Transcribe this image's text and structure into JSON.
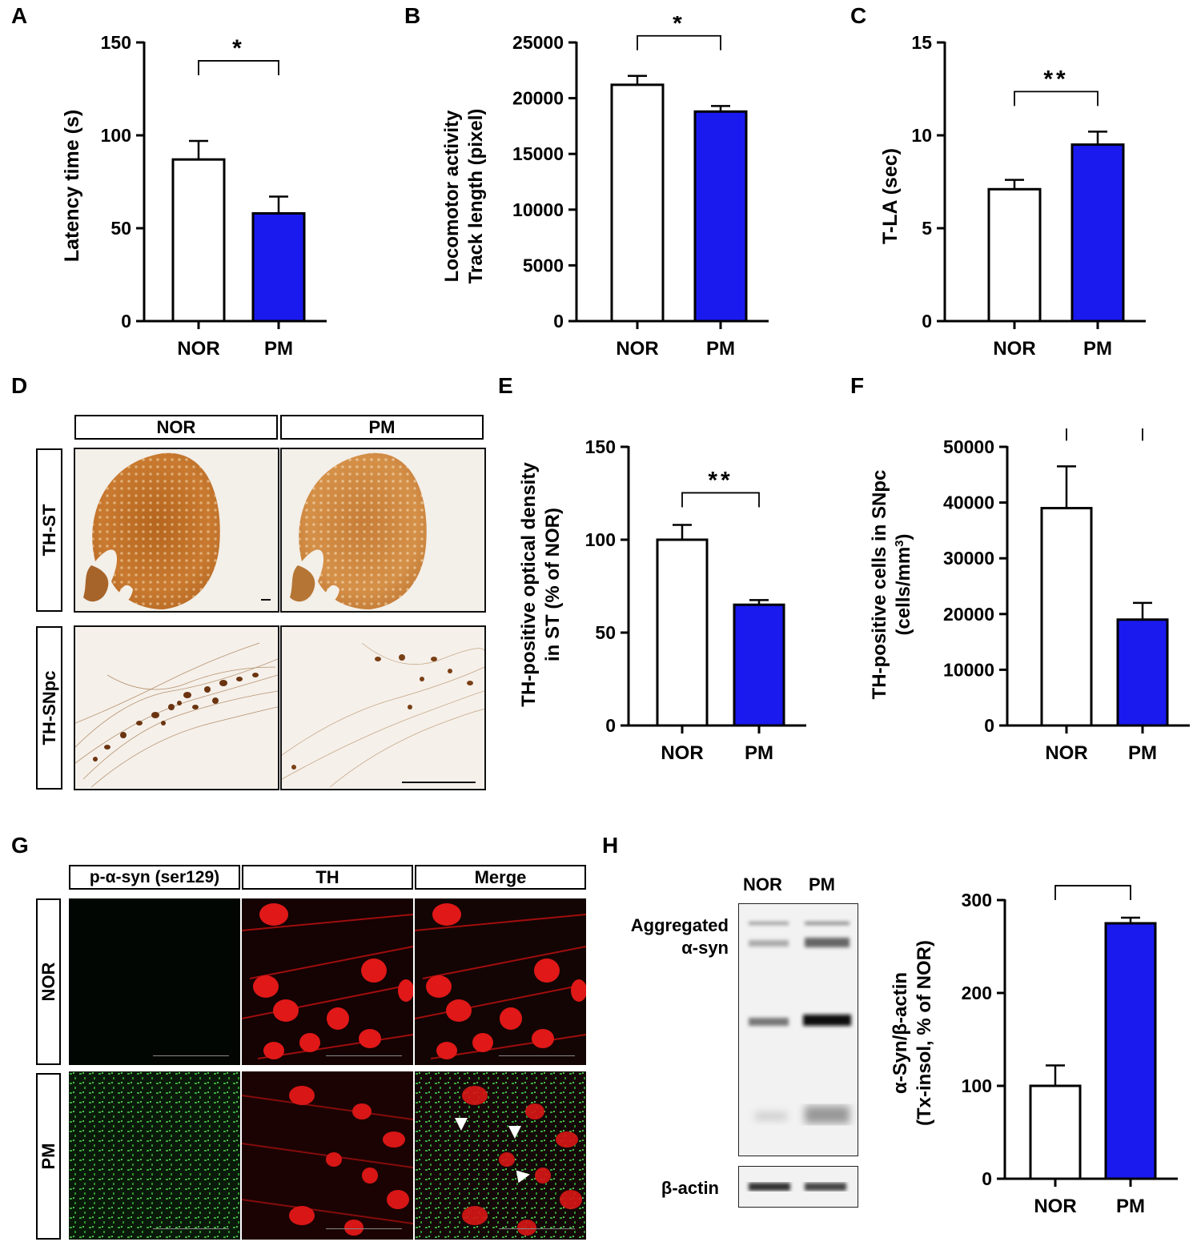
{
  "panels": {
    "a": {
      "letter": "A"
    },
    "b": {
      "letter": "B"
    },
    "c": {
      "letter": "C"
    },
    "d": {
      "letter": "D",
      "col_headers": [
        "NOR",
        "PM"
      ],
      "row_headers": [
        "TH-ST",
        "TH-SNpc"
      ]
    },
    "e": {
      "letter": "E"
    },
    "f": {
      "letter": "F"
    },
    "g": {
      "letter": "G",
      "col_headers": [
        "p-α-syn (ser129)",
        "TH",
        "Merge"
      ],
      "row_headers": [
        "NOR",
        "PM"
      ]
    },
    "h": {
      "letter": "H",
      "lane_labels": [
        "NOR",
        "PM"
      ],
      "band_label_1": "Aggregated",
      "band_label_2": "α-syn",
      "loading_label": "β-actin"
    }
  },
  "colors": {
    "nor_fill": "#ffffff",
    "pm_fill": "#1a1aee",
    "stroke": "#000000"
  },
  "chart_data": [
    {
      "id": "A",
      "type": "bar",
      "categories": [
        "NOR",
        "PM"
      ],
      "values": [
        87,
        58
      ],
      "errors": [
        10,
        9
      ],
      "ylabel": "Latency time (s)",
      "ylim": [
        0,
        150
      ],
      "yticks": [
        "0",
        "50",
        "100",
        "150"
      ],
      "significance": "*"
    },
    {
      "id": "B",
      "type": "bar",
      "categories": [
        "NOR",
        "PM"
      ],
      "values": [
        21200,
        18800
      ],
      "errors": [
        800,
        500
      ],
      "ylabel_line1": "Locomotor activity",
      "ylabel_line2": "Track length (pixel)",
      "ylim": [
        0,
        25000
      ],
      "yticks": [
        "0",
        "5000",
        "10000",
        "15000",
        "20000",
        "25000"
      ],
      "significance": "*"
    },
    {
      "id": "C",
      "type": "bar",
      "categories": [
        "NOR",
        "PM"
      ],
      "values": [
        7.1,
        9.5
      ],
      "errors": [
        0.5,
        0.7
      ],
      "ylabel": "T-LA (sec)",
      "ylim": [
        0,
        15
      ],
      "yticks": [
        "0",
        "5",
        "10",
        "15"
      ],
      "significance": "**"
    },
    {
      "id": "E",
      "type": "bar",
      "categories": [
        "NOR",
        "PM"
      ],
      "values": [
        100,
        65
      ],
      "errors": [
        8,
        2.5
      ],
      "ylabel_line1": "TH-positive optical density",
      "ylabel_line2": "in ST (% of NOR)",
      "ylim": [
        0,
        150
      ],
      "yticks": [
        "0",
        "50",
        "100",
        "150"
      ],
      "significance": "**"
    },
    {
      "id": "F",
      "type": "bar",
      "categories": [
        "NOR",
        "PM"
      ],
      "values": [
        39000,
        19000
      ],
      "errors": [
        7500,
        3000
      ],
      "ylabel_line1": "TH-positive cells in SNpc",
      "ylabel_line2": "(cells/mm",
      "ylabel_sup": "3",
      "ylabel_line2_end": ")",
      "ylim": [
        0,
        50000
      ],
      "yticks": [
        "0",
        "10000",
        "20000",
        "30000",
        "40000",
        "50000"
      ],
      "significance": "*"
    },
    {
      "id": "H",
      "type": "bar",
      "categories": [
        "NOR",
        "PM"
      ],
      "values": [
        100,
        275
      ],
      "errors": [
        22,
        6
      ],
      "ylabel_line1": "α-Syn/β-actin",
      "ylabel_line2": "(Tx-insol, % of NOR)",
      "ylim": [
        0,
        300
      ],
      "yticks": [
        "0",
        "100",
        "200",
        "300"
      ],
      "significance": "**"
    }
  ]
}
